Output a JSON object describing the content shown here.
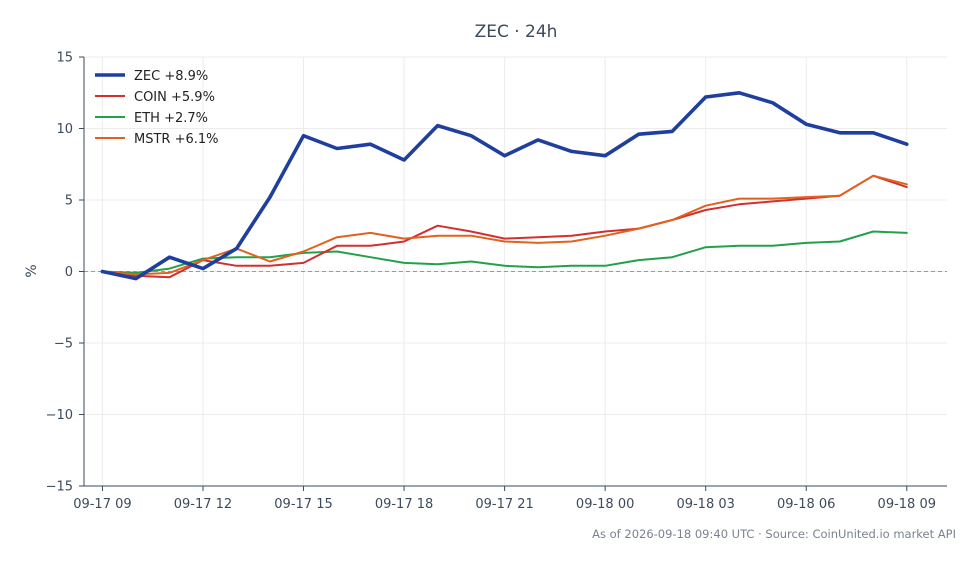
{
  "chart_data": {
    "type": "line",
    "title": "ZEC · 24h",
    "xlabel": "",
    "ylabel": "%",
    "ylim": [
      -15,
      15
    ],
    "yticks": [
      -15,
      -10,
      -5,
      0,
      5,
      10,
      15
    ],
    "ytick_labels": [
      "−15",
      "−10",
      "−5",
      "0",
      "5",
      "10",
      "15"
    ],
    "x": [
      0,
      1,
      2,
      3,
      4,
      5,
      6,
      7,
      8,
      9,
      10,
      11,
      12,
      13,
      14,
      15,
      16,
      17,
      18,
      19,
      20,
      21,
      22,
      23,
      24
    ],
    "xlim": [
      -0.55,
      25.2
    ],
    "xtick_positions": [
      0,
      3,
      6,
      9,
      12,
      15,
      18,
      21,
      24
    ],
    "xtick_labels": [
      "09-17 09",
      "09-17 12",
      "09-17 15",
      "09-17 18",
      "09-17 21",
      "09-18 00",
      "09-18 03",
      "09-18 06",
      "09-18 09"
    ],
    "grid": true,
    "zero_line": true,
    "legend_position": "top-left",
    "series": [
      {
        "name": "ZEC +8.9%",
        "color": "#1f3f9e",
        "values": [
          0.0,
          -0.5,
          1.0,
          0.2,
          1.6,
          5.2,
          9.5,
          8.6,
          8.9,
          7.8,
          10.2,
          9.5,
          8.1,
          9.2,
          8.4,
          8.1,
          9.6,
          9.8,
          12.2,
          12.5,
          11.8,
          10.3,
          9.7,
          9.7,
          8.9
        ]
      },
      {
        "name": "COIN +5.9%",
        "color": "#d1302f",
        "values": [
          0.0,
          -0.3,
          -0.4,
          0.8,
          0.4,
          0.4,
          0.6,
          1.8,
          1.8,
          2.1,
          3.2,
          2.8,
          2.3,
          2.4,
          2.5,
          2.8,
          3.0,
          3.6,
          4.3,
          4.7,
          4.9,
          5.1,
          5.3,
          6.7,
          5.9
        ]
      },
      {
        "name": "ETH +2.7%",
        "color": "#25a04a",
        "values": [
          0.0,
          -0.1,
          0.2,
          0.9,
          1.0,
          1.0,
          1.3,
          1.4,
          1.0,
          0.6,
          0.5,
          0.7,
          0.4,
          0.3,
          0.4,
          0.4,
          0.8,
          1.0,
          1.7,
          1.8,
          1.8,
          2.0,
          2.1,
          2.8,
          2.7
        ]
      },
      {
        "name": "MSTR +6.1%",
        "color": "#e2611e",
        "values": [
          0.0,
          -0.2,
          -0.1,
          0.8,
          1.6,
          0.7,
          1.4,
          2.4,
          2.7,
          2.3,
          2.5,
          2.5,
          2.1,
          2.0,
          2.1,
          2.5,
          3.0,
          3.6,
          4.6,
          5.1,
          5.1,
          5.2,
          5.3,
          6.7,
          6.1
        ]
      }
    ],
    "footer": "As of 2026-09-18 09:40 UTC · Source: CoinUnited.io market API"
  }
}
